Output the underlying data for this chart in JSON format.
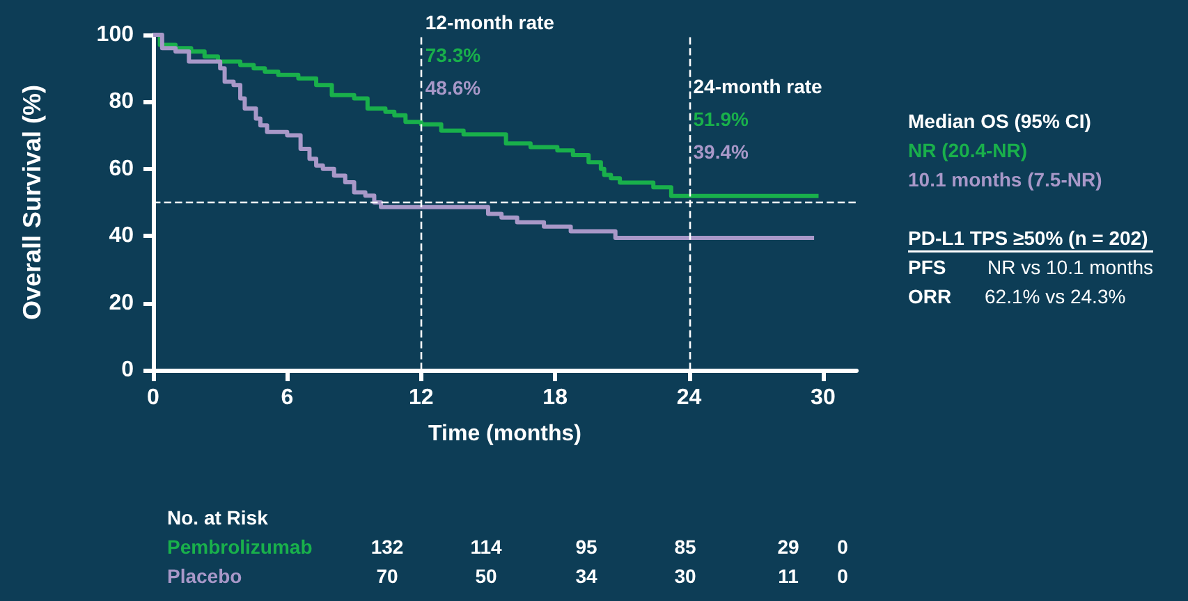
{
  "chart_data": {
    "type": "step",
    "xlabel": "Time (months)",
    "ylabel": "Overall Survival (%)",
    "xlim": [
      0,
      31.5
    ],
    "xticks": [
      0,
      6,
      12,
      18,
      24,
      30
    ],
    "ylim": [
      0,
      100
    ],
    "yticks": [
      0,
      20,
      40,
      60,
      80,
      100
    ],
    "marker": "none",
    "series": [
      {
        "name": "Pembrolizumab",
        "color": "#19b04b",
        "x": [
          0,
          0.3,
          1.0,
          1.7,
          2.3,
          2.9,
          3.9,
          4.5,
          5.0,
          5.6,
          6.5,
          7.3,
          8.0,
          9.0,
          9.6,
          10.4,
          10.8,
          11.3,
          12.0,
          12.9,
          13.9,
          15.8,
          16.9,
          18.1,
          18.8,
          19.5,
          20.05,
          20.2,
          20.5,
          20.9,
          22.4,
          23.2,
          29.8
        ],
        "values": [
          100,
          97,
          96,
          95,
          93.5,
          92,
          91,
          90,
          89,
          88,
          87,
          85,
          82,
          81,
          78,
          77,
          76,
          74,
          73.3,
          71.4,
          70.3,
          67.6,
          66.5,
          65.5,
          64.1,
          62,
          60,
          58.2,
          57.2,
          55.9,
          54.5,
          51.9,
          51.9
        ]
      },
      {
        "name": "Placebo",
        "color": "#a898c8",
        "x": [
          0,
          0.4,
          1.0,
          1.6,
          3.0,
          3.2,
          3.6,
          3.9,
          4.1,
          4.6,
          4.8,
          5.1,
          6.0,
          6.6,
          7.0,
          7.3,
          7.6,
          8.1,
          8.6,
          9.0,
          9.5,
          9.9,
          10.2,
          15.0,
          15.6,
          16.3,
          17.5,
          18.7,
          20.7,
          29.6
        ],
        "values": [
          100,
          96,
          95,
          92,
          90,
          86,
          85,
          81,
          78,
          75,
          73,
          71,
          70,
          66,
          63,
          61,
          60,
          58,
          56,
          53,
          52,
          50,
          48.6,
          46.6,
          45.5,
          44.1,
          42.8,
          41.4,
          39.4,
          39.4
        ]
      }
    ],
    "ref_lines": [
      {
        "axis": "x",
        "value": 12,
        "label": "12-month rate",
        "line_style": "dashed",
        "color": "#ffffff"
      },
      {
        "axis": "x",
        "value": 24,
        "label": "24-month rate",
        "line_style": "dashed",
        "color": "#ffffff"
      },
      {
        "axis": "y",
        "value": 50,
        "line_style": "dashed",
        "color": "#ffffff"
      }
    ],
    "annotations": [
      "73.3%",
      "48.6%",
      "51.9%",
      "39.4%",
      "Median OS (95% CI)",
      "NR (20.4-NR)",
      "10.1 months (7.5-NR)",
      "PD-L1 TPS ≥50% (n = 202)",
      "PFS",
      "NR vs 10.1 months",
      "ORR",
      "62.1% vs 24.3%",
      "No. at Risk",
      "132",
      "114",
      "95",
      "85",
      "29",
      "0",
      "70",
      "50",
      "34",
      "30",
      "11",
      "0"
    ]
  }
}
